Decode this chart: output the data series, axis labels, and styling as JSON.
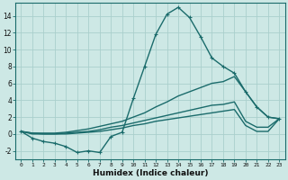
{
  "x_values": [
    0,
    1,
    2,
    3,
    4,
    5,
    6,
    7,
    8,
    9,
    10,
    11,
    12,
    13,
    14,
    15,
    16,
    17,
    18,
    19,
    20,
    21,
    22,
    23
  ],
  "line_main": [
    0.3,
    -0.5,
    -0.9,
    -1.1,
    -1.5,
    -2.2,
    -2.0,
    -2.2,
    -0.3,
    0.2,
    4.2,
    8.0,
    11.8,
    14.2,
    15.0,
    13.8,
    11.5,
    9.0,
    8.0,
    7.2,
    5.0,
    3.2,
    2.0,
    1.8
  ],
  "line_fan1": [
    0.3,
    0.1,
    0.1,
    0.1,
    0.2,
    0.4,
    0.6,
    0.9,
    1.2,
    1.5,
    2.0,
    2.5,
    3.2,
    3.8,
    4.5,
    5.0,
    5.5,
    6.0,
    6.2,
    6.8,
    5.0,
    3.2,
    2.0,
    1.8
  ],
  "line_fan2": [
    0.3,
    0.1,
    0.0,
    0.0,
    0.1,
    0.2,
    0.3,
    0.5,
    0.8,
    1.0,
    1.3,
    1.6,
    1.9,
    2.2,
    2.5,
    2.8,
    3.1,
    3.4,
    3.5,
    3.8,
    1.5,
    0.8,
    0.8,
    1.8
  ],
  "line_fan3": [
    0.3,
    0.0,
    0.0,
    0.0,
    0.0,
    0.1,
    0.2,
    0.3,
    0.5,
    0.7,
    1.0,
    1.2,
    1.5,
    1.7,
    1.9,
    2.1,
    2.3,
    2.5,
    2.7,
    2.9,
    1.0,
    0.3,
    0.3,
    1.8
  ],
  "bg_color": "#cde8e5",
  "line_color": "#1a6b6b",
  "grid_color": "#aacfcc",
  "xlabel": "Humidex (Indice chaleur)",
  "xlim": [
    -0.5,
    23.5
  ],
  "ylim": [
    -3.0,
    15.5
  ],
  "yticks": [
    -2,
    0,
    2,
    4,
    6,
    8,
    10,
    12,
    14
  ],
  "xticks": [
    0,
    1,
    2,
    3,
    4,
    5,
    6,
    7,
    8,
    9,
    10,
    11,
    12,
    13,
    14,
    15,
    16,
    17,
    18,
    19,
    20,
    21,
    22,
    23
  ],
  "xtick_labels": [
    "0",
    "1",
    "2",
    "3",
    "4",
    "5",
    "6",
    "7",
    "8",
    "9",
    "10",
    "11",
    "12",
    "13",
    "14",
    "15",
    "16",
    "17",
    "18",
    "19",
    "20",
    "21",
    "22",
    "23"
  ]
}
